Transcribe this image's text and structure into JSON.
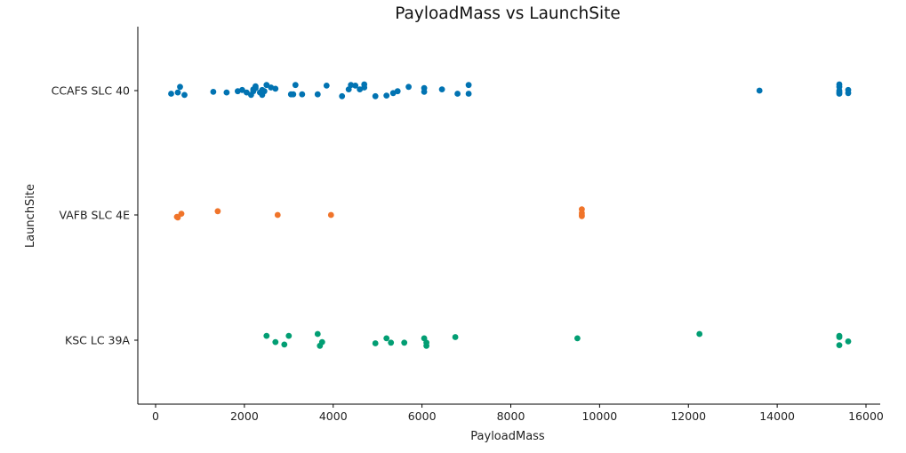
{
  "chart_data": {
    "type": "scatter",
    "title": "PayloadMass vs LaunchSite",
    "xlabel": "PayloadMass",
    "ylabel": "LaunchSite",
    "xlim": [
      -400,
      16300
    ],
    "x_ticks": [
      0,
      2000,
      4000,
      6000,
      8000,
      10000,
      12000,
      14000,
      16000
    ],
    "categories": [
      "CCAFS SLC 40",
      "VAFB SLC 4E",
      "KSC LC 39A"
    ],
    "grid": false,
    "series": [
      {
        "category": "CCAFS SLC 40",
        "color": "#0173b2",
        "points": [
          [
            350,
            0.05
          ],
          [
            500,
            0.03
          ],
          [
            550,
            -0.06
          ],
          [
            650,
            0.07
          ],
          [
            1300,
            0.02
          ],
          [
            1600,
            0.03
          ],
          [
            1850,
            0.01
          ],
          [
            1950,
            -0.01
          ],
          [
            2050,
            0.03
          ],
          [
            2150,
            0.07
          ],
          [
            2200,
            -0.02
          ],
          [
            2200,
            0.01
          ],
          [
            2250,
            -0.07
          ],
          [
            2250,
            -0.04
          ],
          [
            2350,
            0.03
          ],
          [
            2400,
            0.07
          ],
          [
            2400,
            -0.01
          ],
          [
            2450,
            0.01
          ],
          [
            2500,
            -0.09
          ],
          [
            2600,
            -0.05
          ],
          [
            2700,
            -0.03
          ],
          [
            3050,
            0.06
          ],
          [
            3150,
            -0.09
          ],
          [
            3100,
            0.06
          ],
          [
            3300,
            0.06
          ],
          [
            3650,
            0.06
          ],
          [
            3850,
            -0.08
          ],
          [
            4200,
            0.09
          ],
          [
            4350,
            -0.02
          ],
          [
            4400,
            -0.09
          ],
          [
            4500,
            -0.08
          ],
          [
            4600,
            -0.02
          ],
          [
            4700,
            -0.05
          ],
          [
            4700,
            -0.1
          ],
          [
            4950,
            0.09
          ],
          [
            5200,
            0.08
          ],
          [
            5350,
            0.04
          ],
          [
            5450,
            0.01
          ],
          [
            5700,
            -0.06
          ],
          [
            6050,
            -0.04
          ],
          [
            6050,
            0.02
          ],
          [
            6450,
            -0.02
          ],
          [
            6800,
            0.05
          ],
          [
            7050,
            0.05
          ],
          [
            7050,
            -0.09
          ],
          [
            13600,
            0.0
          ],
          [
            15400,
            -0.1
          ],
          [
            15400,
            -0.06
          ],
          [
            15400,
            0.0
          ],
          [
            15400,
            0.03
          ],
          [
            15400,
            0.05
          ],
          [
            15600,
            -0.01
          ],
          [
            15600,
            0.04
          ]
        ]
      },
      {
        "category": "VAFB SLC 4E",
        "color": "#f0742a",
        "points": [
          [
            480,
            0.03
          ],
          [
            500,
            0.04
          ],
          [
            580,
            -0.02
          ],
          [
            1400,
            -0.06
          ],
          [
            2750,
            0.0
          ],
          [
            3950,
            0.0
          ],
          [
            9600,
            -0.09
          ],
          [
            9600,
            -0.03
          ],
          [
            9600,
            0.0
          ],
          [
            9600,
            0.02
          ]
        ]
      },
      {
        "category": "KSC LC 39A",
        "color": "#029e73",
        "points": [
          [
            2500,
            -0.07
          ],
          [
            2700,
            0.03
          ],
          [
            2900,
            0.07
          ],
          [
            3000,
            -0.07
          ],
          [
            3650,
            -0.1
          ],
          [
            3700,
            0.09
          ],
          [
            3750,
            0.03
          ],
          [
            4950,
            0.05
          ],
          [
            5200,
            -0.03
          ],
          [
            5300,
            0.04
          ],
          [
            5600,
            0.04
          ],
          [
            6050,
            -0.03
          ],
          [
            6100,
            0.04
          ],
          [
            6100,
            0.09
          ],
          [
            6750,
            -0.05
          ],
          [
            9500,
            -0.03
          ],
          [
            12250,
            -0.1
          ],
          [
            15400,
            -0.07
          ],
          [
            15400,
            -0.05
          ],
          [
            15400,
            0.08
          ],
          [
            15600,
            0.02
          ]
        ]
      }
    ]
  }
}
